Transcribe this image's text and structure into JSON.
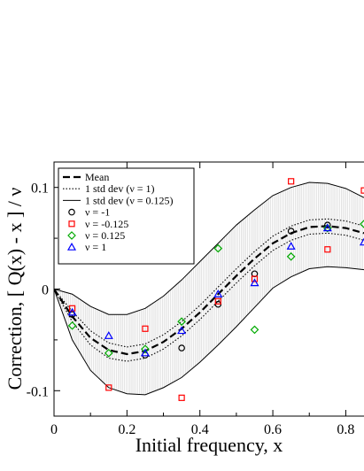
{
  "chart_data": {
    "type": "scatter",
    "xlabel": "Initial frequency, x",
    "ylabel": "Correction, [ Q(x) - x ] / ν",
    "xlim": [
      0,
      0.85
    ],
    "ylim": [
      -0.125,
      0.125
    ],
    "x_ticks": [
      0,
      0.2,
      0.4,
      0.6,
      0.8
    ],
    "x_tick_labels": [
      "0",
      "0.2",
      "0.4",
      "0.6",
      "0.8"
    ],
    "y_ticks": [
      -0.1,
      0,
      0.1
    ],
    "y_tick_labels": [
      "-0.1",
      "0",
      "0.1"
    ],
    "legend_position": "top-left",
    "curves": [
      {
        "name": "Mean",
        "style": "dashed",
        "x": [
          0,
          0.05,
          0.1,
          0.15,
          0.2,
          0.25,
          0.3,
          0.35,
          0.4,
          0.45,
          0.5,
          0.55,
          0.6,
          0.65,
          0.7,
          0.75,
          0.8,
          0.85
        ],
        "y": [
          0,
          -0.027,
          -0.048,
          -0.06,
          -0.064,
          -0.061,
          -0.052,
          -0.039,
          -0.023,
          -0.005,
          0.013,
          0.03,
          0.045,
          0.055,
          0.061,
          0.062,
          0.06,
          0.055
        ]
      },
      {
        "name": "1 std dev (ν = 1)",
        "style": "dotted",
        "band": true,
        "x": [
          0,
          0.05,
          0.1,
          0.15,
          0.2,
          0.25,
          0.3,
          0.35,
          0.4,
          0.45,
          0.5,
          0.55,
          0.6,
          0.65,
          0.7,
          0.75,
          0.8,
          0.85
        ],
        "upper": [
          0,
          -0.022,
          -0.041,
          -0.053,
          -0.057,
          -0.054,
          -0.045,
          -0.032,
          -0.016,
          0.002,
          0.02,
          0.037,
          0.052,
          0.062,
          0.068,
          0.069,
          0.067,
          0.062
        ],
        "lower": [
          0,
          -0.032,
          -0.055,
          -0.068,
          -0.071,
          -0.068,
          -0.059,
          -0.046,
          -0.03,
          -0.012,
          0.006,
          0.023,
          0.038,
          0.048,
          0.054,
          0.055,
          0.053,
          0.048
        ]
      },
      {
        "name": "1 std dev (ν = 0.125)",
        "style": "solid",
        "band": true,
        "x": [
          0,
          0.05,
          0.1,
          0.15,
          0.2,
          0.25,
          0.3,
          0.35,
          0.4,
          0.45,
          0.5,
          0.55,
          0.6,
          0.65,
          0.7,
          0.75,
          0.8,
          0.85
        ],
        "upper": [
          0,
          -0.005,
          -0.017,
          -0.025,
          -0.025,
          -0.019,
          -0.007,
          0.009,
          0.027,
          0.045,
          0.063,
          0.078,
          0.092,
          0.1,
          0.105,
          0.104,
          0.099,
          0.09
        ],
        "lower": [
          0,
          -0.05,
          -0.08,
          -0.097,
          -0.103,
          -0.104,
          -0.097,
          -0.087,
          -0.072,
          -0.055,
          -0.037,
          -0.018,
          0.001,
          0.012,
          0.02,
          0.022,
          0.021,
          0.019
        ]
      }
    ],
    "series": [
      {
        "name": "ν = -1",
        "marker": "circle",
        "color": "#000000",
        "points": [
          [
            0.05,
            -0.025
          ],
          [
            0.25,
            -0.065
          ],
          [
            0.35,
            -0.058
          ],
          [
            0.45,
            -0.015
          ],
          [
            0.55,
            0.015
          ],
          [
            0.65,
            0.057
          ],
          [
            0.75,
            0.063
          ]
        ]
      },
      {
        "name": "ν = -0.125",
        "marker": "square",
        "color": "#ff0000",
        "points": [
          [
            0.05,
            -0.019
          ],
          [
            0.15,
            -0.097
          ],
          [
            0.25,
            -0.039
          ],
          [
            0.35,
            -0.107
          ],
          [
            0.45,
            -0.012
          ],
          [
            0.55,
            0.01
          ],
          [
            0.65,
            0.106
          ],
          [
            0.75,
            0.039
          ],
          [
            0.85,
            0.097
          ]
        ]
      },
      {
        "name": "ν = 0.125",
        "marker": "diamond",
        "color": "#00aa00",
        "points": [
          [
            0.05,
            -0.036
          ],
          [
            0.15,
            -0.063
          ],
          [
            0.25,
            -0.059
          ],
          [
            0.35,
            -0.032
          ],
          [
            0.45,
            0.04
          ],
          [
            0.55,
            -0.04
          ],
          [
            0.65,
            0.032
          ],
          [
            0.75,
            0.06
          ],
          [
            0.85,
            0.064
          ]
        ]
      },
      {
        "name": "ν = 1",
        "marker": "triangle",
        "color": "#0000ff",
        "points": [
          [
            0.05,
            -0.023
          ],
          [
            0.15,
            -0.046
          ],
          [
            0.25,
            -0.063
          ],
          [
            0.35,
            -0.041
          ],
          [
            0.45,
            -0.005
          ],
          [
            0.55,
            0.006
          ],
          [
            0.65,
            0.042
          ],
          [
            0.75,
            0.06
          ],
          [
            0.85,
            0.046
          ]
        ]
      }
    ]
  }
}
